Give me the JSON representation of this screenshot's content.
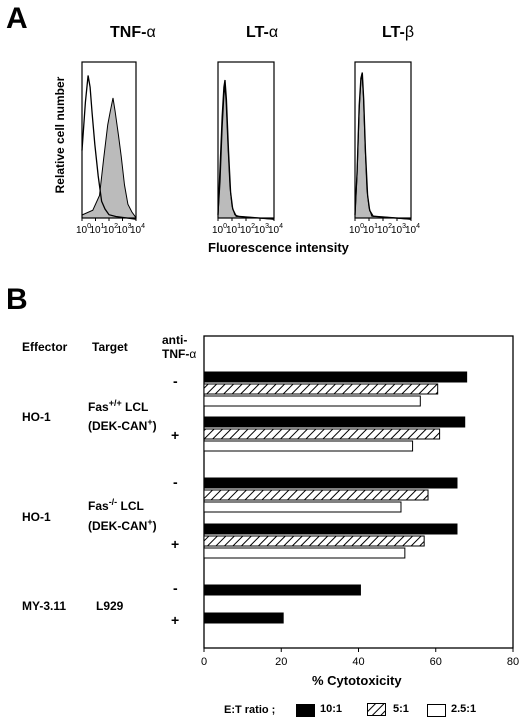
{
  "panelA": {
    "letter": "A",
    "ylabel": "Relative cell number",
    "xlabel": "Fluorescence intensity",
    "tick_bases": [
      "10",
      "10",
      "10",
      "10",
      "10"
    ],
    "tick_exps": [
      "0",
      "1",
      "2",
      "3",
      "4"
    ],
    "titles": [
      {
        "pre": "TNF-",
        "greek": "α"
      },
      {
        "pre": "LT-",
        "greek": "α"
      },
      {
        "pre": "LT-",
        "greek": "β"
      }
    ]
  },
  "panelB": {
    "letter": "B",
    "headers": {
      "effector": "Effector",
      "target": "Target",
      "anti1": "anti-",
      "anti2_pre": "TNF-",
      "anti2_greek": "α"
    },
    "rows": [
      {
        "effector": "HO-1",
        "target_line1_pre": "Fas",
        "target_line1_sup": "+/+",
        "target_line1_post": " LCL",
        "target_line2_pre": "(DEK-CAN",
        "target_line2_sup": "+",
        "target_line2_post": ")"
      },
      {
        "effector": "HO-1",
        "target_line1_pre": "Fas",
        "target_line1_sup": "-/-",
        "target_line1_post": " LCL",
        "target_line2_pre": "(DEK-CAN",
        "target_line2_sup": "+",
        "target_line2_post": ")"
      },
      {
        "effector": "MY-3.11",
        "target_line1_pre": "L929",
        "target_line1_sup": "",
        "target_line1_post": "",
        "target_line2_pre": "",
        "target_line2_sup": "",
        "target_line2_post": ""
      }
    ],
    "signs": [
      "-",
      "+",
      "-",
      "+",
      "-",
      "+"
    ],
    "legend_label": "E:T ratio ;"
  },
  "chart_data": [
    {
      "type": "histogram",
      "title": "TNF-α",
      "xscale": "log",
      "xlim": [
        1,
        10000
      ],
      "series": [
        {
          "fill": "#bbbbbb",
          "peak_log": 2.3,
          "width": 0.55,
          "curve": [
            [
              0.0,
              0.02
            ],
            [
              0.8,
              0.06
            ],
            [
              1.3,
              0.15
            ],
            [
              1.6,
              0.4
            ],
            [
              1.9,
              0.62
            ],
            [
              2.1,
              0.72
            ],
            [
              2.3,
              0.8
            ],
            [
              2.45,
              0.72
            ],
            [
              2.7,
              0.55
            ],
            [
              2.9,
              0.42
            ],
            [
              3.15,
              0.22
            ],
            [
              3.4,
              0.1
            ],
            [
              3.7,
              0.04
            ],
            [
              4.0,
              0.01
            ]
          ]
        },
        {
          "fill": "none",
          "curve": [
            [
              0.0,
              0.45
            ],
            [
              0.25,
              0.78
            ],
            [
              0.45,
              0.95
            ],
            [
              0.6,
              0.88
            ],
            [
              0.75,
              0.7
            ],
            [
              0.95,
              0.5
            ],
            [
              1.2,
              0.28
            ],
            [
              1.45,
              0.12
            ],
            [
              1.7,
              0.06
            ],
            [
              2.0,
              0.03
            ],
            [
              2.5,
              0.01
            ],
            [
              4.0,
              0.0
            ]
          ]
        }
      ]
    },
    {
      "type": "histogram",
      "title": "LT-α",
      "xscale": "log",
      "xlim": [
        1,
        10000
      ],
      "series": [
        {
          "fill": "#bbbbbb",
          "curve": [
            [
              0.0,
              0.02
            ],
            [
              0.15,
              0.25
            ],
            [
              0.3,
              0.6
            ],
            [
              0.42,
              0.82
            ],
            [
              0.5,
              0.88
            ],
            [
              0.58,
              0.78
            ],
            [
              0.7,
              0.5
            ],
            [
              0.85,
              0.22
            ],
            [
              1.0,
              0.08
            ],
            [
              1.2,
              0.03
            ],
            [
              1.5,
              0.01
            ],
            [
              4.0,
              0.0
            ]
          ]
        },
        {
          "fill": "none",
          "curve": [
            [
              0.0,
              0.02
            ],
            [
              0.15,
              0.35
            ],
            [
              0.3,
              0.68
            ],
            [
              0.42,
              0.88
            ],
            [
              0.5,
              0.92
            ],
            [
              0.6,
              0.8
            ],
            [
              0.75,
              0.45
            ],
            [
              0.9,
              0.18
            ],
            [
              1.05,
              0.06
            ],
            [
              1.3,
              0.02
            ],
            [
              1.6,
              0.01
            ],
            [
              4.0,
              0.0
            ]
          ]
        }
      ]
    },
    {
      "type": "histogram",
      "title": "LT-β",
      "xscale": "log",
      "xlim": [
        1,
        10000
      ],
      "series": [
        {
          "fill": "#bbbbbb",
          "curve": [
            [
              0.0,
              0.02
            ],
            [
              0.15,
              0.3
            ],
            [
              0.3,
              0.72
            ],
            [
              0.42,
              0.92
            ],
            [
              0.5,
              0.96
            ],
            [
              0.6,
              0.82
            ],
            [
              0.72,
              0.48
            ],
            [
              0.85,
              0.2
            ],
            [
              1.0,
              0.07
            ],
            [
              1.2,
              0.02
            ],
            [
              1.5,
              0.01
            ],
            [
              4.0,
              0.0
            ]
          ]
        },
        {
          "fill": "none",
          "curve": [
            [
              0.0,
              0.02
            ],
            [
              0.15,
              0.32
            ],
            [
              0.3,
              0.75
            ],
            [
              0.42,
              0.94
            ],
            [
              0.52,
              0.97
            ],
            [
              0.62,
              0.8
            ],
            [
              0.75,
              0.44
            ],
            [
              0.9,
              0.16
            ],
            [
              1.05,
              0.05
            ],
            [
              1.3,
              0.02
            ],
            [
              1.6,
              0.01
            ],
            [
              4.0,
              0.0
            ]
          ]
        }
      ]
    },
    {
      "type": "bar",
      "orientation": "horizontal",
      "xlabel": "% Cytotoxicity",
      "xlim": [
        0,
        80
      ],
      "xticks": [
        0,
        20,
        40,
        60,
        80
      ],
      "series": [
        {
          "name": "10:1",
          "pattern": "solid",
          "values": [
            68,
            67.5,
            65.5,
            65.5,
            40.5,
            20.5
          ]
        },
        {
          "name": "5:1",
          "pattern": "hatch",
          "values": [
            60.5,
            61,
            58,
            57,
            null,
            null
          ]
        },
        {
          "name": "2.5:1",
          "pattern": "open",
          "values": [
            56,
            54,
            51,
            52,
            null,
            null
          ]
        }
      ]
    }
  ]
}
